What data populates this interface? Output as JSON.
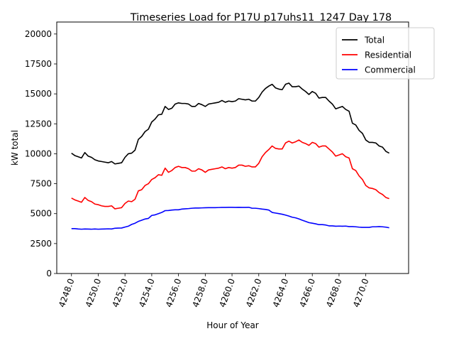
{
  "chart_data": {
    "type": "line",
    "title": "Timeseries Load for P17U p17uhs11_1247  Day 178",
    "xlabel": "Hour of Year",
    "ylabel": "kW total",
    "xlim": [
      4246.9,
      4273.2
    ],
    "ylim": [
      0,
      21000
    ],
    "xticks": [
      4248,
      4250,
      4252,
      4254,
      4256,
      4258,
      4260,
      4262,
      4264,
      4266,
      4268,
      4270
    ],
    "xtick_labels": [
      "4248.0",
      "4250.0",
      "4252.0",
      "4254.0",
      "4256.0",
      "4258.0",
      "4260.0",
      "4262.0",
      "4264.0",
      "4266.0",
      "4268.0",
      "4270.0"
    ],
    "yticks": [
      0,
      2500,
      5000,
      7500,
      10000,
      12500,
      15000,
      17500,
      20000
    ],
    "ytick_labels": [
      "0",
      "2500",
      "5000",
      "7500",
      "10000",
      "12500",
      "15000",
      "17500",
      "20000"
    ],
    "legend_position": "top-right",
    "x": [
      4248.0,
      4248.25,
      4248.5,
      4248.75,
      4249.0,
      4249.25,
      4249.5,
      4249.75,
      4250.0,
      4250.25,
      4250.5,
      4250.75,
      4251.0,
      4251.25,
      4251.5,
      4251.75,
      4252.0,
      4252.25,
      4252.5,
      4252.75,
      4253.0,
      4253.25,
      4253.5,
      4253.75,
      4254.0,
      4254.25,
      4254.5,
      4254.75,
      4255.0,
      4255.25,
      4255.5,
      4255.75,
      4256.0,
      4256.25,
      4256.5,
      4256.75,
      4257.0,
      4257.25,
      4257.5,
      4257.75,
      4258.0,
      4258.25,
      4258.5,
      4258.75,
      4259.0,
      4259.25,
      4259.5,
      4259.75,
      4260.0,
      4260.25,
      4260.5,
      4260.75,
      4261.0,
      4261.25,
      4261.5,
      4261.75,
      4262.0,
      4262.25,
      4262.5,
      4262.75,
      4263.0,
      4263.25,
      4263.5,
      4263.75,
      4264.0,
      4264.25,
      4264.5,
      4264.75,
      4265.0,
      4265.25,
      4265.5,
      4265.75,
      4266.0,
      4266.25,
      4266.5,
      4266.75,
      4267.0,
      4267.25,
      4267.5,
      4267.75,
      4268.0,
      4268.25,
      4268.5,
      4268.75,
      4269.0,
      4269.25,
      4269.5,
      4269.75,
      4270.0,
      4270.25,
      4270.5,
      4270.75,
      4271.0,
      4271.25,
      4271.5,
      4271.75
    ],
    "series": [
      {
        "name": "Total",
        "color": "#000000",
        "values": [
          10050,
          9850,
          9750,
          9650,
          10100,
          9800,
          9700,
          9500,
          9400,
          9350,
          9300,
          9250,
          9350,
          9150,
          9200,
          9250,
          9700,
          10000,
          10050,
          10300,
          11200,
          11450,
          11850,
          12050,
          12650,
          12900,
          13250,
          13300,
          13950,
          13700,
          13800,
          14150,
          14250,
          14200,
          14200,
          14150,
          13950,
          13950,
          14200,
          14100,
          13950,
          14150,
          14200,
          14250,
          14300,
          14450,
          14300,
          14400,
          14350,
          14400,
          14600,
          14550,
          14500,
          14550,
          14400,
          14400,
          14700,
          15150,
          15450,
          15650,
          15800,
          15500,
          15400,
          15350,
          15800,
          15900,
          15600,
          15600,
          15650,
          15400,
          15200,
          14950,
          15200,
          15050,
          14650,
          14700,
          14700,
          14400,
          14150,
          13750,
          13850,
          13950,
          13700,
          13550,
          12550,
          12400,
          11950,
          11700,
          11150,
          10950,
          10950,
          10900,
          10650,
          10550,
          10200,
          10050
        ]
      },
      {
        "name": "Residential",
        "color": "#ff0000",
        "values": [
          6300,
          6150,
          6050,
          5950,
          6350,
          6100,
          6000,
          5800,
          5750,
          5650,
          5600,
          5600,
          5650,
          5400,
          5450,
          5500,
          5850,
          6050,
          6000,
          6200,
          6900,
          7000,
          7350,
          7500,
          7850,
          8000,
          8250,
          8200,
          8800,
          8450,
          8600,
          8850,
          8950,
          8850,
          8850,
          8750,
          8550,
          8550,
          8750,
          8650,
          8450,
          8650,
          8700,
          8750,
          8800,
          8900,
          8750,
          8850,
          8800,
          8850,
          9050,
          9050,
          8950,
          9000,
          8900,
          8900,
          9200,
          9750,
          10100,
          10350,
          10650,
          10450,
          10400,
          10400,
          10900,
          11050,
          10900,
          11000,
          11150,
          10950,
          10850,
          10700,
          10950,
          10850,
          10550,
          10650,
          10650,
          10400,
          10150,
          9800,
          9900,
          10000,
          9750,
          9650,
          8750,
          8600,
          8150,
          7850,
          7350,
          7150,
          7100,
          7000,
          6750,
          6600,
          6350,
          6250
        ]
      },
      {
        "name": "Commercial",
        "color": "#0000ff",
        "values": [
          3750,
          3750,
          3720,
          3700,
          3720,
          3710,
          3700,
          3720,
          3700,
          3710,
          3720,
          3730,
          3720,
          3780,
          3790,
          3800,
          3880,
          3950,
          4100,
          4200,
          4350,
          4450,
          4550,
          4600,
          4850,
          4900,
          5000,
          5100,
          5250,
          5260,
          5300,
          5320,
          5320,
          5380,
          5400,
          5420,
          5450,
          5470,
          5470,
          5480,
          5490,
          5500,
          5500,
          5500,
          5510,
          5520,
          5520,
          5530,
          5530,
          5520,
          5530,
          5520,
          5520,
          5530,
          5450,
          5450,
          5420,
          5380,
          5350,
          5300,
          5100,
          5050,
          5000,
          4950,
          4880,
          4800,
          4700,
          4650,
          4560,
          4450,
          4350,
          4250,
          4200,
          4150,
          4080,
          4080,
          4050,
          3980,
          3980,
          3950,
          3960,
          3950,
          3960,
          3920,
          3920,
          3900,
          3870,
          3850,
          3850,
          3850,
          3900,
          3900,
          3920,
          3900,
          3870,
          3820
        ]
      }
    ]
  }
}
